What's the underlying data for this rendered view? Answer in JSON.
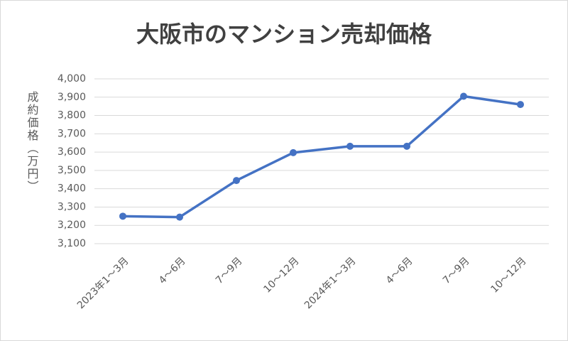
{
  "chart_data": {
    "type": "line",
    "title": "大阪市のマンション売却価格",
    "y_label": "成約価格（万円）",
    "categories": [
      "2023年1～3月",
      "4～6月",
      "7～9月",
      "10～12月",
      "2024年1～3月",
      "4～6月",
      "7～9月",
      "10～12月"
    ],
    "values": [
      3250,
      3245,
      3445,
      3597,
      3632,
      3632,
      3905,
      3860
    ],
    "color": "#4472c4",
    "ylim": [
      3100,
      4000
    ],
    "yticks": [
      {
        "value": 3100,
        "label": "3,100"
      },
      {
        "value": 3200,
        "label": "3,200"
      },
      {
        "value": 3300,
        "label": "3,300"
      },
      {
        "value": 3400,
        "label": "3,400"
      },
      {
        "value": 3500,
        "label": "3,500"
      },
      {
        "value": 3600,
        "label": "3,600"
      },
      {
        "value": 3700,
        "label": "3,700"
      },
      {
        "value": 3800,
        "label": "3,800"
      },
      {
        "value": 3900,
        "label": "3,900"
      },
      {
        "value": 4000,
        "label": "4,000"
      }
    ],
    "grid": true
  }
}
